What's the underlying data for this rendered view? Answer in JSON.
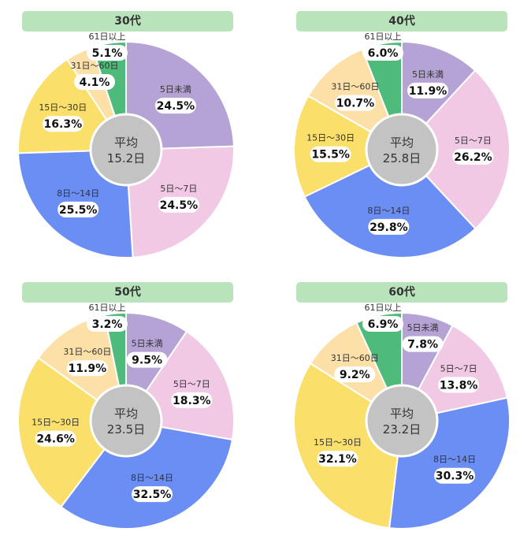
{
  "colors": {
    "banner": "#b9e3bb",
    "center": "#c3c3c3",
    "5日未満": "#b6a3d6",
    "5日～7日": "#f1c9e5",
    "8日～14日": "#6a8ef4",
    "15日～30日": "#fae06a",
    "31日～60日": "#fde0a8",
    "61日以上": "#4fbb7b"
  },
  "chart_data": [
    {
      "type": "pie",
      "title": "30代",
      "center_label": "平均",
      "center_value": "15.2日",
      "categories": [
        "5日未満",
        "5日～7日",
        "8日～14日",
        "15日～30日",
        "31日～60日",
        "61日以上"
      ],
      "values": [
        24.5,
        24.5,
        25.5,
        16.3,
        4.1,
        5.1
      ],
      "value_labels": [
        "24.5%",
        "24.5%",
        "25.5%",
        "16.3%",
        "4.1%",
        "5.1%"
      ]
    },
    {
      "type": "pie",
      "title": "40代",
      "center_label": "平均",
      "center_value": "25.8日",
      "categories": [
        "5日未満",
        "5日～7日",
        "8日～14日",
        "15日～30日",
        "31日～60日",
        "61日以上"
      ],
      "values": [
        11.9,
        26.2,
        29.8,
        15.5,
        10.7,
        6.0
      ],
      "value_labels": [
        "11.9%",
        "26.2%",
        "29.8%",
        "15.5%",
        "10.7%",
        "6.0%"
      ]
    },
    {
      "type": "pie",
      "title": "50代",
      "center_label": "平均",
      "center_value": "23.5日",
      "categories": [
        "5日未満",
        "5日～7日",
        "8日～14日",
        "15日～30日",
        "31日～60日",
        "61日以上"
      ],
      "values": [
        9.5,
        18.3,
        32.5,
        24.6,
        11.9,
        3.2
      ],
      "value_labels": [
        "9.5%",
        "18.3%",
        "32.5%",
        "24.6%",
        "11.9%",
        "3.2%"
      ]
    },
    {
      "type": "pie",
      "title": "60代",
      "center_label": "平均",
      "center_value": "23.2日",
      "categories": [
        "5日未満",
        "5日～7日",
        "8日～14日",
        "15日～30日",
        "31日～60日",
        "61日以上"
      ],
      "values": [
        7.8,
        13.8,
        30.3,
        32.1,
        9.2,
        6.9
      ],
      "value_labels": [
        "7.8%",
        "13.8%",
        "30.3%",
        "32.1%",
        "9.2%",
        "6.9%"
      ]
    }
  ]
}
